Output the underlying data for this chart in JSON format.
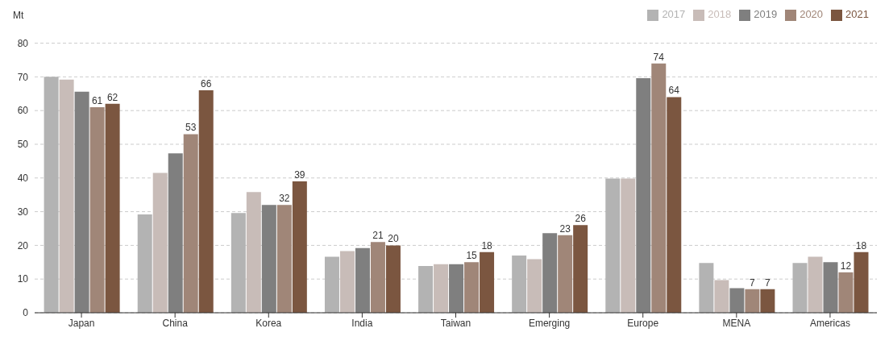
{
  "chart_data": {
    "type": "bar",
    "ylabel": "Mt",
    "categories": [
      "Japan",
      "China",
      "Korea",
      "India",
      "Taiwan",
      "Emerging",
      "Europe",
      "MENA",
      "Americas"
    ],
    "series": [
      {
        "name": "2017",
        "color": "#b3b3b3",
        "values": [
          70,
          29.2,
          29.6,
          16.6,
          13.9,
          17,
          39.8,
          14.8,
          14.8
        ]
      },
      {
        "name": "2018",
        "color": "#c8bcb8",
        "values": [
          69.2,
          41.5,
          35.8,
          18.3,
          14.4,
          15.9,
          39.8,
          9.7,
          16.6
        ]
      },
      {
        "name": "2019",
        "color": "#7f7f7f",
        "values": [
          65.6,
          47.3,
          32,
          19.2,
          14.4,
          23.6,
          69.6,
          7.3,
          15
        ]
      },
      {
        "name": "2020",
        "color": "#a08678",
        "values": [
          61,
          53,
          32,
          21,
          15,
          23,
          74,
          7,
          12
        ],
        "value_labels": [
          "61",
          "53",
          "32",
          "21",
          "15",
          "23",
          "74",
          "7",
          "12"
        ]
      },
      {
        "name": "2021",
        "color": "#7b5640",
        "values": [
          62,
          66,
          39,
          20,
          18,
          26,
          64,
          7,
          18
        ],
        "value_labels": [
          "62",
          "66",
          "39",
          "20",
          "18",
          "26",
          "64",
          "7",
          "18"
        ]
      }
    ],
    "ylim": [
      0,
      80
    ],
    "yticks": [
      0,
      10,
      20,
      30,
      40,
      50,
      60,
      70,
      80
    ],
    "grid": "y",
    "legend": "top right"
  }
}
